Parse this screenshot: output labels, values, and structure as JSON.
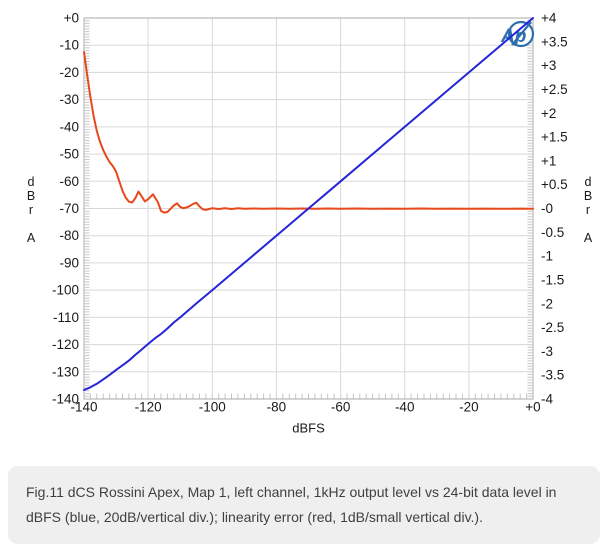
{
  "colors": {
    "grid": "#d8d8d8",
    "minor_tick": "#c6c6c6",
    "border": "#a8a8a8",
    "axis_text": "#1a1a1a",
    "logo_blue": "#2d6fae",
    "caption_bg": "#efefef",
    "caption_text": "#3f4043"
  },
  "logo": {
    "name": "Audio Precision",
    "text": "Ap"
  },
  "caption": {
    "text": "Fig.11 dCS Rossini Apex, Map 1, left channel, 1kHz output level vs 24-bit data level in dBFS (blue, 20dB/vertical div.); linearity error (red, 1dB/small vertical div.)."
  },
  "chart_data": {
    "type": "line",
    "title": "",
    "xlabel": "dBFS",
    "ylabel_left": "dBr A",
    "ylabel_right": "dBr A",
    "xlim": [
      -140,
      0
    ],
    "ylim_left": [
      -140,
      0
    ],
    "ylim_right": [
      -4,
      4
    ],
    "grid": true,
    "x_ticks": [
      -140,
      -120,
      -100,
      -80,
      -60,
      -40,
      -20,
      0
    ],
    "x_tick_labels": [
      "-140",
      "-120",
      "-100",
      "-80",
      "-60",
      "-40",
      "-20",
      "+0"
    ],
    "left_y_ticks": [
      0,
      -10,
      -20,
      -30,
      -40,
      -50,
      -60,
      -70,
      -80,
      -90,
      -100,
      -110,
      -120,
      -130,
      -140
    ],
    "left_y_tick_labels": [
      "+0",
      "-10",
      "-20",
      "-30",
      "-40",
      "-50",
      "-60",
      "-70",
      "-80",
      "-90",
      "-100",
      "-110",
      "-120",
      "-130",
      "-140"
    ],
    "right_y_ticks": [
      4,
      3.5,
      3,
      2.5,
      2,
      1.5,
      1,
      0.5,
      0,
      -0.5,
      -1,
      -1.5,
      -2,
      -2.5,
      -3,
      -3.5,
      -4
    ],
    "right_y_tick_labels": [
      "+4",
      "+3.5",
      "+3",
      "+2.5",
      "+2",
      "+1.5",
      "+1",
      "+0.5",
      "-0",
      "-0.5",
      "-1",
      "-1.5",
      "-2",
      "-2.5",
      "-3",
      "-3.5",
      "-4"
    ],
    "minor_tick_step_y_db": 1,
    "minor_tick_step_x_db": 2,
    "series": [
      {
        "id": "linearity-error",
        "name": "linearity error (red, 1dB/small vertical div., reads -0 on right axis)",
        "color": "#e8481c",
        "axis": "left",
        "points": [
          [
            -140,
            -12.5
          ],
          [
            -139,
            -21
          ],
          [
            -138,
            -29
          ],
          [
            -137,
            -36
          ],
          [
            -136,
            -41.5
          ],
          [
            -135,
            -45.5
          ],
          [
            -134,
            -48.5
          ],
          [
            -133,
            -51
          ],
          [
            -132,
            -53
          ],
          [
            -131,
            -54.5
          ],
          [
            -130,
            -56.5
          ],
          [
            -129,
            -60
          ],
          [
            -128,
            -63.5
          ],
          [
            -127,
            -66
          ],
          [
            -126,
            -67.5
          ],
          [
            -125,
            -67.8
          ],
          [
            -124,
            -66.2
          ],
          [
            -123,
            -63.8
          ],
          [
            -122,
            -65.6
          ],
          [
            -121,
            -67.4
          ],
          [
            -120,
            -66.6
          ],
          [
            -118.5,
            -64.8
          ],
          [
            -117,
            -67.6
          ],
          [
            -116,
            -70.9
          ],
          [
            -115,
            -71.5
          ],
          [
            -114,
            -71.3
          ],
          [
            -113,
            -70.1
          ],
          [
            -112,
            -68.9
          ],
          [
            -111,
            -68.1
          ],
          [
            -110,
            -69.4
          ],
          [
            -109,
            -69.9
          ],
          [
            -108,
            -69.6
          ],
          [
            -107,
            -69.1
          ],
          [
            -106,
            -68.3
          ],
          [
            -105,
            -67.9
          ],
          [
            -104,
            -69.2
          ],
          [
            -103,
            -70.3
          ],
          [
            -102,
            -70.5
          ],
          [
            -101,
            -70.2
          ],
          [
            -100,
            -69.9
          ],
          [
            -98,
            -70.2
          ],
          [
            -96,
            -69.9
          ],
          [
            -94,
            -70.2
          ],
          [
            -92,
            -69.9
          ],
          [
            -90,
            -70.1
          ],
          [
            -87,
            -70
          ],
          [
            -84,
            -70.1
          ],
          [
            -80,
            -70
          ],
          [
            -76,
            -70.1
          ],
          [
            -72,
            -70
          ],
          [
            -68,
            -70.1
          ],
          [
            -64,
            -70
          ],
          [
            -60,
            -70.1
          ],
          [
            -55,
            -70
          ],
          [
            -50,
            -70.1
          ],
          [
            -45,
            -70.05
          ],
          [
            -40,
            -70.1
          ],
          [
            -35,
            -70
          ],
          [
            -30,
            -70.1
          ],
          [
            -25,
            -70.05
          ],
          [
            -20,
            -70.1
          ],
          [
            -15,
            -70.05
          ],
          [
            -10,
            -70.1
          ],
          [
            -5,
            -70.05
          ],
          [
            0,
            -70.1
          ]
        ]
      },
      {
        "id": "output-level",
        "name": "1kHz output level vs 24-bit data level (blue, 20dB/vertical div.)",
        "color": "#2424d8",
        "axis": "left",
        "points": [
          [
            -140,
            -136.7
          ],
          [
            -138,
            -135.7
          ],
          [
            -136,
            -134.4
          ],
          [
            -134,
            -132.8
          ],
          [
            -132,
            -131.1
          ],
          [
            -130,
            -129.3
          ],
          [
            -128,
            -127.6
          ],
          [
            -126,
            -125.9
          ],
          [
            -124,
            -123.8
          ],
          [
            -122,
            -121.8
          ],
          [
            -120,
            -119.8
          ],
          [
            -118,
            -117.8
          ],
          [
            -116,
            -116.1
          ],
          [
            -114,
            -114.1
          ],
          [
            -112,
            -111.9
          ],
          [
            -110,
            -110
          ],
          [
            -105,
            -104.9
          ],
          [
            -100,
            -100
          ],
          [
            -90,
            -90
          ],
          [
            -80,
            -80
          ],
          [
            -70,
            -70
          ],
          [
            -60,
            -60
          ],
          [
            -50,
            -50
          ],
          [
            -40,
            -40
          ],
          [
            -30,
            -30
          ],
          [
            -20,
            -20
          ],
          [
            -10,
            -10
          ],
          [
            0,
            0
          ]
        ]
      }
    ]
  }
}
